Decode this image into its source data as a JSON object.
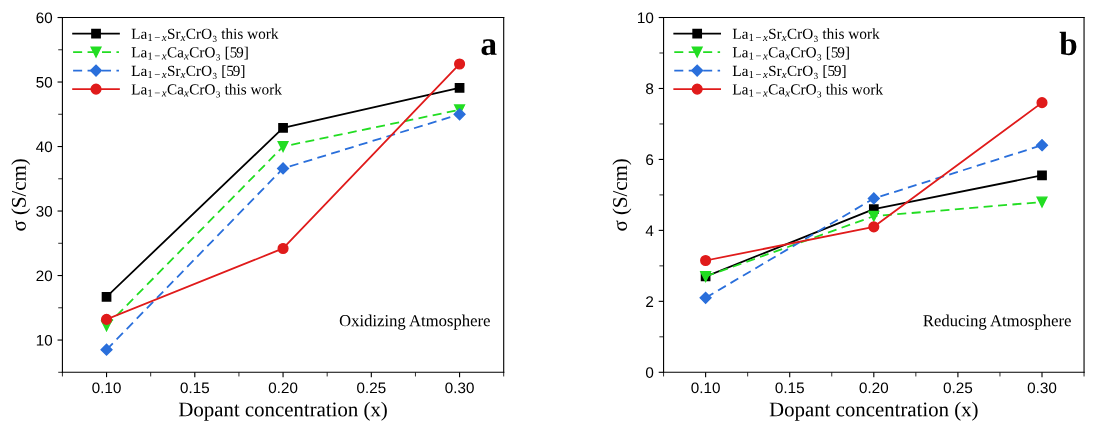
{
  "chart_data": [
    {
      "type": "line",
      "xlabel": "Dopant concentration (x)",
      "ylabel": "σ (S/cm)",
      "xlim": [
        0.075,
        0.325
      ],
      "ylim": [
        5,
        60
      ],
      "xticks": [
        {
          "value": 0.1,
          "label": "0.10"
        },
        {
          "value": 0.15,
          "label": "0.15"
        },
        {
          "value": 0.2,
          "label": "0.20"
        },
        {
          "value": 0.25,
          "label": "0.25"
        },
        {
          "value": 0.3,
          "label": "0.30"
        }
      ],
      "yticks": [
        10,
        20,
        30,
        40,
        50,
        60
      ],
      "x": [
        0.1,
        0.2,
        0.3
      ],
      "legend": "top left",
      "grid": false,
      "annotations": [
        "a",
        "Oxidizing Atmosphere"
      ],
      "series": [
        {
          "name": "La$_{1−x}$Sr$_{x}$CrO₃ this work",
          "color": "#000000",
          "marker": "square",
          "line_style": "solid",
          "values": [
            16.7,
            42.9,
            49.1
          ]
        },
        {
          "name": "La$_{1−x}$Ca$_{x}$CrO₃ [59]",
          "color": "#22dd22",
          "marker": "triangle",
          "line_style": "dashed",
          "values": [
            12.2,
            40.0,
            45.7
          ]
        },
        {
          "name": "La$_{1−x}$Sr$_{x}$CrO₃ [59]",
          "color": "#2a6fdb",
          "marker": "diamond",
          "line_style": "dashed",
          "values": [
            8.5,
            36.6,
            45.0
          ]
        },
        {
          "name": "La$_{1−x}$Ca$_{x}$CrO₃ this work",
          "color": "#e01b1b",
          "marker": "circle",
          "line_style": "solid",
          "values": [
            13.2,
            24.2,
            52.8
          ]
        }
      ]
    },
    {
      "type": "line",
      "xlabel": "Dopant concentration (x)",
      "ylabel": "σ (S/cm)",
      "xlim": [
        0.075,
        0.325
      ],
      "ylim": [
        0,
        10
      ],
      "xticks": [
        {
          "value": 0.1,
          "label": "0.10"
        },
        {
          "value": 0.15,
          "label": "0.15"
        },
        {
          "value": 0.2,
          "label": "0.20"
        },
        {
          "value": 0.25,
          "label": "0.25"
        },
        {
          "value": 0.3,
          "label": "0.30"
        }
      ],
      "yticks": [
        0,
        2,
        4,
        6,
        8,
        10
      ],
      "x": [
        0.1,
        0.2,
        0.3
      ],
      "legend": "top left",
      "grid": false,
      "annotations": [
        "b",
        "Reducing Atmosphere"
      ],
      "series": [
        {
          "name": "La$_{1−x}$Sr$_{x}$CrO₃ this work",
          "color": "#000000",
          "marker": "square",
          "line_style": "solid",
          "values": [
            2.7,
            4.6,
            5.55
          ]
        },
        {
          "name": "La$_{1−x}$Ca$_{x}$CrO₃ [59]",
          "color": "#22dd22",
          "marker": "triangle",
          "line_style": "dashed",
          "values": [
            2.7,
            4.4,
            4.8
          ]
        },
        {
          "name": "La$_{1−x}$Sr$_{x}$CrO₃ [59]",
          "color": "#2a6fdb",
          "marker": "diamond",
          "line_style": "dashed",
          "values": [
            2.1,
            4.9,
            6.4
          ]
        },
        {
          "name": "La$_{1−x}$Ca$_{x}$CrO₃ this work",
          "color": "#e01b1b",
          "marker": "circle",
          "line_style": "solid",
          "values": [
            3.15,
            4.1,
            7.6
          ]
        }
      ]
    }
  ]
}
